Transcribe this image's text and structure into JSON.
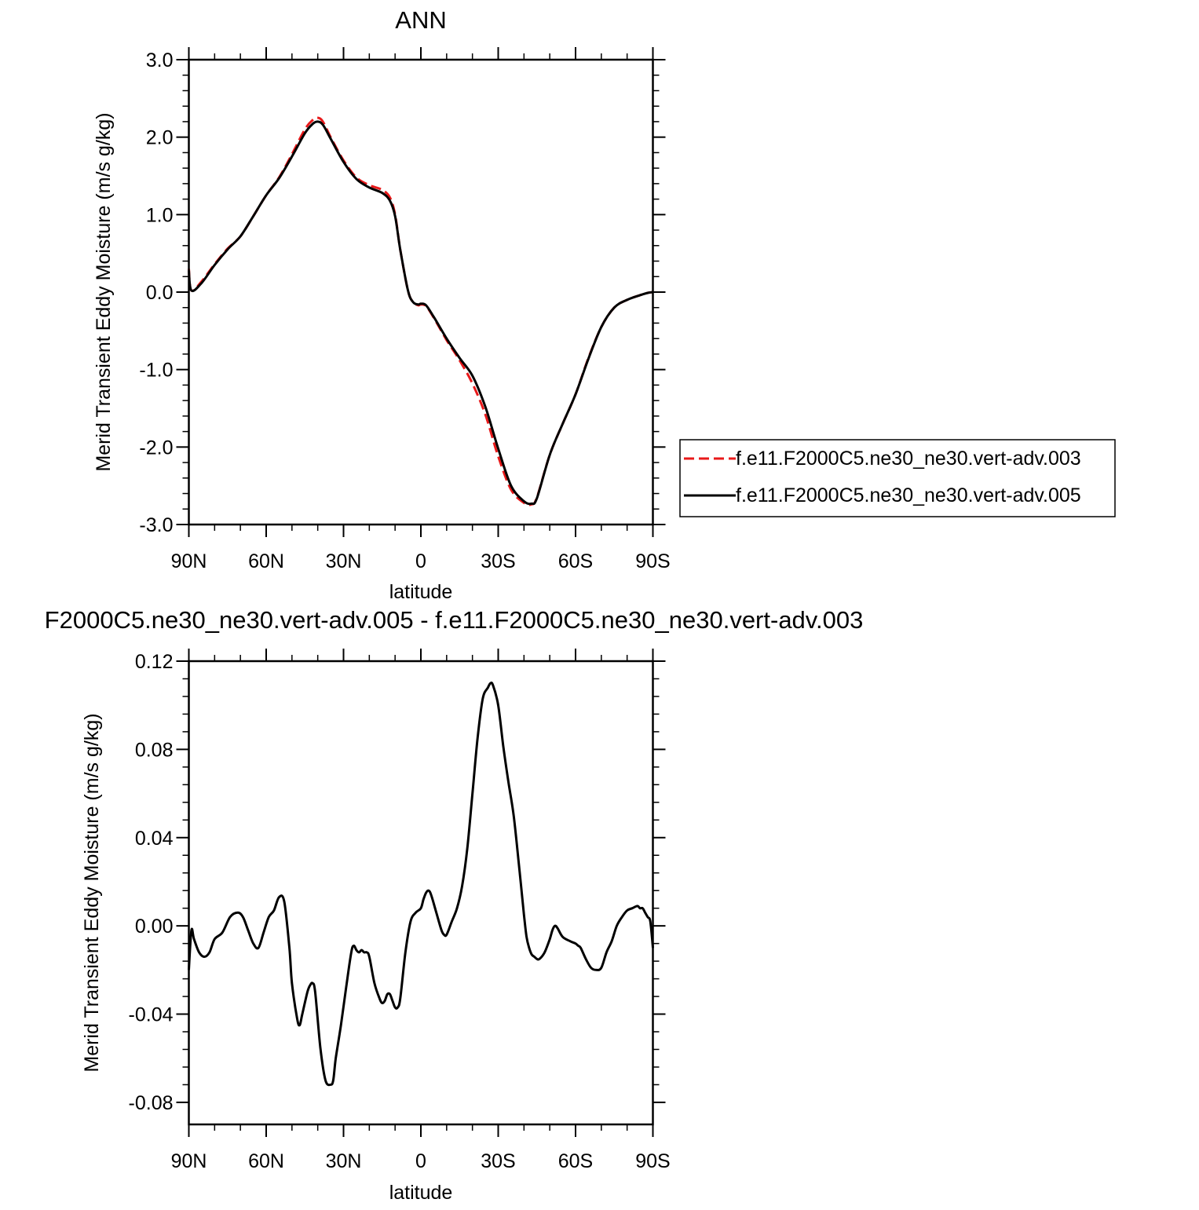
{
  "chart_data": [
    {
      "type": "line",
      "title": "ANN",
      "xlabel": "latitude",
      "ylabel": "Merid Transient Eddy Moisture (m/s g/kg)",
      "xlim": [
        -90,
        90
      ],
      "ylim": [
        -3.0,
        3.0
      ],
      "x_axis_note": "x is signed latitude: negative = N, positive = S",
      "xticks": [
        -90,
        -60,
        -30,
        0,
        30,
        60,
        90
      ],
      "xtick_labels": [
        "90N",
        "60N",
        "30N",
        "0",
        "30S",
        "60S",
        "90S"
      ],
      "yticks": [
        -3.0,
        -2.0,
        -1.0,
        0.0,
        1.0,
        2.0,
        3.0
      ],
      "ytick_labels": [
        "-3.0",
        "-2.0",
        "-1.0",
        "0.0",
        "1.0",
        "2.0",
        "3.0"
      ],
      "grid": false,
      "legend_position": "right",
      "series": [
        {
          "name": "f.e11.F2000C5.ne30_ne30.vert-adv.003",
          "color": "#e8191a",
          "dash": "dashed",
          "x": [
            -90,
            -89,
            -85,
            -80,
            -75,
            -70,
            -65,
            -60,
            -55,
            -50,
            -45,
            -42,
            -40,
            -38,
            -35,
            -30,
            -25,
            -20,
            -15,
            -12,
            -10,
            -8,
            -5,
            -3,
            -1,
            0,
            2,
            5,
            10,
            15,
            20,
            25,
            30,
            35,
            40,
            43,
            45,
            50,
            55,
            60,
            65,
            70,
            75,
            80,
            85,
            88,
            90
          ],
          "y": [
            0.3,
            0.02,
            0.14,
            0.36,
            0.56,
            0.72,
            0.98,
            1.25,
            1.48,
            1.78,
            2.1,
            2.22,
            2.25,
            2.2,
            2.0,
            1.7,
            1.48,
            1.38,
            1.32,
            1.22,
            1.0,
            0.55,
            0.02,
            -0.13,
            -0.17,
            -0.16,
            -0.18,
            -0.33,
            -0.62,
            -0.88,
            -1.18,
            -1.58,
            -2.12,
            -2.55,
            -2.72,
            -2.74,
            -2.65,
            -2.1,
            -1.7,
            -1.32,
            -0.85,
            -0.45,
            -0.2,
            -0.1,
            -0.04,
            -0.01,
            0.0
          ]
        },
        {
          "name": "f.e11.F2000C5.ne30_ne30.vert-adv.005",
          "color": "#000000",
          "dash": "solid",
          "x": [
            -90,
            -89,
            -85,
            -80,
            -75,
            -70,
            -65,
            -60,
            -55,
            -50,
            -45,
            -42,
            -40,
            -38,
            -35,
            -30,
            -25,
            -20,
            -15,
            -12,
            -10,
            -8,
            -5,
            -3,
            -1,
            0,
            2,
            5,
            10,
            15,
            20,
            25,
            30,
            35,
            40,
            43,
            45,
            50,
            55,
            60,
            65,
            70,
            75,
            80,
            85,
            88,
            90
          ],
          "y": [
            0.28,
            0.02,
            0.12,
            0.35,
            0.55,
            0.72,
            0.98,
            1.25,
            1.47,
            1.75,
            2.05,
            2.17,
            2.2,
            2.16,
            1.98,
            1.68,
            1.46,
            1.35,
            1.28,
            1.18,
            0.98,
            0.55,
            0.02,
            -0.13,
            -0.16,
            -0.15,
            -0.17,
            -0.32,
            -0.6,
            -0.85,
            -1.08,
            -1.48,
            -2.02,
            -2.5,
            -2.7,
            -2.73,
            -2.66,
            -2.1,
            -1.7,
            -1.32,
            -0.86,
            -0.45,
            -0.2,
            -0.1,
            -0.04,
            -0.01,
            0.0
          ]
        }
      ]
    },
    {
      "type": "line",
      "title": "F2000C5.ne30_ne30.vert-adv.005 - f.e11.F2000C5.ne30_ne30.vert-adv.003",
      "xlabel": "latitude",
      "ylabel": "Merid Transient Eddy Moisture (m/s g/kg)",
      "xlim": [
        -90,
        90
      ],
      "ylim": [
        -0.09,
        0.12
      ],
      "x_axis_note": "x is signed latitude: negative = N, positive = S",
      "xticks": [
        -90,
        -60,
        -30,
        0,
        30,
        60,
        90
      ],
      "xtick_labels": [
        "90N",
        "60N",
        "30N",
        "0",
        "30S",
        "60S",
        "90S"
      ],
      "yticks": [
        -0.08,
        -0.04,
        0.0,
        0.04,
        0.08,
        0.12
      ],
      "ytick_labels": [
        "-0.08",
        "-0.04",
        "0.00",
        "0.04",
        "0.08",
        "0.12"
      ],
      "grid": false,
      "series": [
        {
          "color": "#000000",
          "dash": "solid",
          "x": [
            -90,
            -89,
            -88,
            -86,
            -84,
            -82,
            -80,
            -77,
            -74,
            -71,
            -69,
            -67,
            -65,
            -63,
            -61,
            -59,
            -57,
            -55,
            -53,
            -51,
            -50,
            -48,
            -47,
            -46,
            -44,
            -43,
            -42,
            -41,
            -39,
            -37,
            -35,
            -34,
            -33,
            -31,
            -29,
            -27,
            -26,
            -25,
            -24,
            -23,
            -22,
            -21,
            -20,
            -18,
            -16,
            -15,
            -14,
            -13,
            -12,
            -11,
            -10,
            -9,
            -8,
            -6,
            -4,
            -2,
            0,
            1,
            2,
            3,
            4,
            6,
            8,
            9,
            10,
            12,
            14,
            16,
            18,
            20,
            22,
            24,
            26,
            27,
            28,
            30,
            32,
            34,
            36,
            38,
            40,
            41,
            42,
            43,
            44,
            45,
            46,
            48,
            50,
            51,
            52,
            53,
            55,
            58,
            60,
            61,
            62,
            64,
            66,
            68,
            70,
            72,
            74,
            76,
            78,
            80,
            82,
            84,
            85,
            86,
            87,
            88,
            89,
            90
          ],
          "y": [
            -0.02,
            -0.002,
            -0.006,
            -0.012,
            -0.014,
            -0.012,
            -0.006,
            -0.003,
            0.004,
            0.006,
            0.004,
            -0.002,
            -0.008,
            -0.01,
            -0.003,
            0.004,
            0.007,
            0.013,
            0.011,
            -0.01,
            -0.026,
            -0.042,
            -0.045,
            -0.04,
            -0.03,
            -0.027,
            -0.026,
            -0.03,
            -0.055,
            -0.07,
            -0.072,
            -0.07,
            -0.06,
            -0.045,
            -0.028,
            -0.012,
            -0.009,
            -0.011,
            -0.012,
            -0.011,
            -0.012,
            -0.012,
            -0.014,
            -0.026,
            -0.033,
            -0.035,
            -0.034,
            -0.031,
            -0.031,
            -0.034,
            -0.037,
            -0.037,
            -0.033,
            -0.012,
            0.002,
            0.006,
            0.008,
            0.012,
            0.015,
            0.016,
            0.014,
            0.006,
            -0.002,
            -0.004,
            -0.004,
            0.002,
            0.008,
            0.018,
            0.035,
            0.06,
            0.085,
            0.103,
            0.108,
            0.11,
            0.109,
            0.1,
            0.081,
            0.065,
            0.05,
            0.028,
            0.005,
            -0.005,
            -0.01,
            -0.013,
            -0.014,
            -0.015,
            -0.015,
            -0.012,
            -0.006,
            -0.002,
            0.0,
            -0.001,
            -0.005,
            -0.007,
            -0.008,
            -0.009,
            -0.01,
            -0.015,
            -0.019,
            -0.02,
            -0.019,
            -0.012,
            -0.007,
            0.0,
            0.004,
            0.007,
            0.008,
            0.009,
            0.008,
            0.008,
            0.006,
            0.004,
            0.002,
            -0.01
          ]
        }
      ]
    }
  ]
}
